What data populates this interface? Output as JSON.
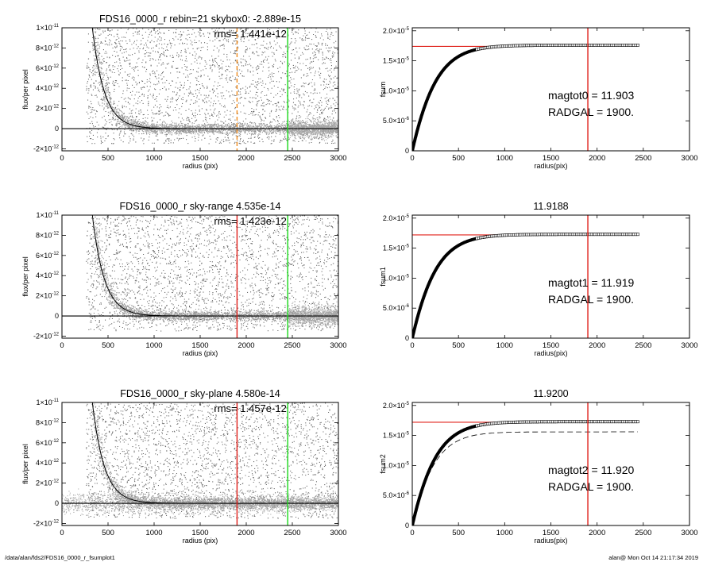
{
  "footer": {
    "left": "/data/alan/fds2/FDS16_0000_r_fsumplot1",
    "right": "alan@  Mon Oct 14 21:17:34 2019"
  },
  "colors": {
    "red": "#e0201a",
    "green": "#18d818",
    "orange": "#f08a1c",
    "scatter": "#9a9a9a",
    "scatter_dark": "#333333",
    "curve": "#000000"
  },
  "chart_data": [
    {
      "type": "scatter",
      "title": "FDS16_0000_r rebin=21    skybox0: -2.889e-15",
      "annotation": "rms= 1.441e-12",
      "xlabel": "radius (pix)",
      "ylabel": "flux/per pixel",
      "xlim": [
        0,
        3000
      ],
      "ylim": [
        -2.2e-12,
        1e-11
      ],
      "xticks": [
        0,
        500,
        1000,
        1500,
        2000,
        2500,
        3000
      ],
      "xtick_labels": [
        "0",
        "500",
        "1000",
        "1500",
        "2000",
        "2500",
        "3000"
      ],
      "yticks": [
        -2e-12,
        0,
        2e-12,
        4e-12,
        6e-12,
        8e-12,
        1e-11
      ],
      "ytick_labels": [
        {
          "m": "-2×10",
          "e": "-12"
        },
        {
          "m": "0",
          "e": ""
        },
        {
          "m": "2×10",
          "e": "-12"
        },
        {
          "m": "4×10",
          "e": "-12"
        },
        {
          "m": "6×10",
          "e": "-12"
        },
        {
          "m": "8×10",
          "e": "-12"
        },
        {
          "m": "1×10",
          "e": "-11"
        }
      ],
      "profile_model": {
        "amplitude": 1e-11,
        "start_radius": 330,
        "scale": 130,
        "floor": 0
      },
      "vlines": [
        {
          "x": 1900,
          "color": "orange",
          "style": "dashed"
        },
        {
          "x": 2450,
          "color": "green",
          "style": "solid"
        }
      ],
      "grey_band": [
        2450,
        3000
      ],
      "zero_line": true
    },
    {
      "type": "line",
      "title": "",
      "xlabel": "radius(pix)",
      "ylabel": "fsum",
      "xlim": [
        0,
        3000
      ],
      "ylim": [
        0,
        2.05e-05
      ],
      "xticks": [
        0,
        500,
        1000,
        1500,
        2000,
        2500,
        3000
      ],
      "xtick_labels": [
        "0",
        "500",
        "1000",
        "1500",
        "2000",
        "2500",
        "3000"
      ],
      "yticks": [
        0,
        5e-06,
        1e-05,
        1.5e-05,
        2e-05
      ],
      "ytick_labels": [
        {
          "m": "0",
          "e": ""
        },
        {
          "m": "5.0×10",
          "e": "-6"
        },
        {
          "m": "1.0×10",
          "e": "-5"
        },
        {
          "m": "1.5×10",
          "e": "-5"
        },
        {
          "m": "2.0×10",
          "e": "-5"
        }
      ],
      "curve": {
        "asymptote": 1.76e-05,
        "scale": 170,
        "x_max": 2450
      },
      "hline": {
        "y": 1.74e-05,
        "x0": 0,
        "x1": 1000,
        "color": "red"
      },
      "vline": {
        "x": 1900,
        "color": "red"
      },
      "labels": [
        "magtot0 =  11.903",
        "RADGAL =   1900."
      ]
    },
    {
      "type": "scatter",
      "title": "FDS16_0000_r sky-range  4.535e-14",
      "annotation": "rms= 1.423e-12",
      "xlabel": "radius (pix)",
      "ylabel": "flux/per pixel",
      "xlim": [
        0,
        3000
      ],
      "ylim": [
        -2.2e-12,
        1e-11
      ],
      "xticks": [
        0,
        500,
        1000,
        1500,
        2000,
        2500,
        3000
      ],
      "xtick_labels": [
        "0",
        "500",
        "1000",
        "1500",
        "2000",
        "2500",
        "3000"
      ],
      "yticks": [
        -2e-12,
        0,
        2e-12,
        4e-12,
        6e-12,
        8e-12,
        1e-11
      ],
      "ytick_labels": [
        {
          "m": "-2×10",
          "e": "-12"
        },
        {
          "m": "0",
          "e": ""
        },
        {
          "m": "2×10",
          "e": "-12"
        },
        {
          "m": "4×10",
          "e": "-12"
        },
        {
          "m": "6×10",
          "e": "-12"
        },
        {
          "m": "8×10",
          "e": "-12"
        },
        {
          "m": "1×10",
          "e": "-11"
        }
      ],
      "profile_model": {
        "amplitude": 1e-11,
        "start_radius": 330,
        "scale": 130,
        "floor": 0
      },
      "vlines": [
        {
          "x": 1900,
          "color": "red",
          "style": "solid"
        },
        {
          "x": 2450,
          "color": "green",
          "style": "solid"
        }
      ],
      "grey_band": [
        2450,
        3000
      ],
      "zero_line": true
    },
    {
      "type": "line",
      "title": "11.9188",
      "xlabel": "radius(pix)",
      "ylabel": "fsum1",
      "xlim": [
        0,
        3000
      ],
      "ylim": [
        0,
        2.05e-05
      ],
      "xticks": [
        0,
        500,
        1000,
        1500,
        2000,
        2500,
        3000
      ],
      "xtick_labels": [
        "0",
        "500",
        "1000",
        "1500",
        "2000",
        "2500",
        "3000"
      ],
      "yticks": [
        0,
        5e-06,
        1e-05,
        1.5e-05,
        2e-05
      ],
      "ytick_labels": [
        {
          "m": "0",
          "e": ""
        },
        {
          "m": "5.0×10",
          "e": "-6"
        },
        {
          "m": "1.0×10",
          "e": "-5"
        },
        {
          "m": "1.5×10",
          "e": "-5"
        },
        {
          "m": "2.0×10",
          "e": "-5"
        }
      ],
      "curve": {
        "asymptote": 1.73e-05,
        "scale": 170,
        "x_max": 2450
      },
      "hline": {
        "y": 1.72e-05,
        "x0": 0,
        "x1": 1000,
        "color": "red"
      },
      "vline": {
        "x": 1900,
        "color": "red"
      },
      "labels": [
        "magtot1 =  11.919",
        "RADGAL =   1900."
      ]
    },
    {
      "type": "scatter",
      "title": "FDS16_0000_r sky-plane  4.580e-14",
      "annotation": "rms= 1.457e-12",
      "xlabel": "radius (pix)",
      "ylabel": "flux/per pixel",
      "xlim": [
        0,
        3000
      ],
      "ylim": [
        -2.2e-12,
        1e-11
      ],
      "xticks": [
        0,
        500,
        1000,
        1500,
        2000,
        2500,
        3000
      ],
      "xtick_labels": [
        "0",
        "500",
        "1000",
        "1500",
        "2000",
        "2500",
        "3000"
      ],
      "yticks": [
        -2e-12,
        0,
        2e-12,
        4e-12,
        6e-12,
        8e-12,
        1e-11
      ],
      "ytick_labels": [
        {
          "m": "-2×10",
          "e": "-12"
        },
        {
          "m": "0",
          "e": ""
        },
        {
          "m": "2×10",
          "e": "-12"
        },
        {
          "m": "4×10",
          "e": "-12"
        },
        {
          "m": "6×10",
          "e": "-12"
        },
        {
          "m": "8×10",
          "e": "-12"
        },
        {
          "m": "1×10",
          "e": "-11"
        }
      ],
      "profile_model": {
        "amplitude": 1e-11,
        "start_radius": 330,
        "scale": 130,
        "floor": 0
      },
      "vlines": [
        {
          "x": 1900,
          "color": "red",
          "style": "solid"
        },
        {
          "x": 2450,
          "color": "green",
          "style": "solid"
        }
      ],
      "grey_band": [
        0,
        3000
      ],
      "zero_line": true
    },
    {
      "type": "line",
      "title": "11.9200",
      "xlabel": "radius(pix)",
      "ylabel": "fsum2",
      "xlim": [
        0,
        3000
      ],
      "ylim": [
        0,
        2.05e-05
      ],
      "xticks": [
        0,
        500,
        1000,
        1500,
        2000,
        2500,
        3000
      ],
      "xtick_labels": [
        "0",
        "500",
        "1000",
        "1500",
        "2000",
        "2500",
        "3000"
      ],
      "yticks": [
        0,
        5e-06,
        1e-05,
        1.5e-05,
        2e-05
      ],
      "ytick_labels": [
        {
          "m": "0",
          "e": ""
        },
        {
          "m": "5.0×10",
          "e": "-6"
        },
        {
          "m": "1.0×10",
          "e": "-5"
        },
        {
          "m": "1.5×10",
          "e": "-5"
        },
        {
          "m": "2.0×10",
          "e": "-5"
        }
      ],
      "curve": {
        "asymptote": 1.73e-05,
        "scale": 170,
        "x_max": 2450
      },
      "dashed_curve": {
        "asymptote": 1.56e-05,
        "scale": 160,
        "x_max": 2450
      },
      "hline": {
        "y": 1.72e-05,
        "x0": 0,
        "x1": 1000,
        "color": "red"
      },
      "vline": {
        "x": 1900,
        "color": "red"
      },
      "labels": [
        "magtot2 =  11.920",
        "RADGAL =   1900."
      ]
    }
  ]
}
